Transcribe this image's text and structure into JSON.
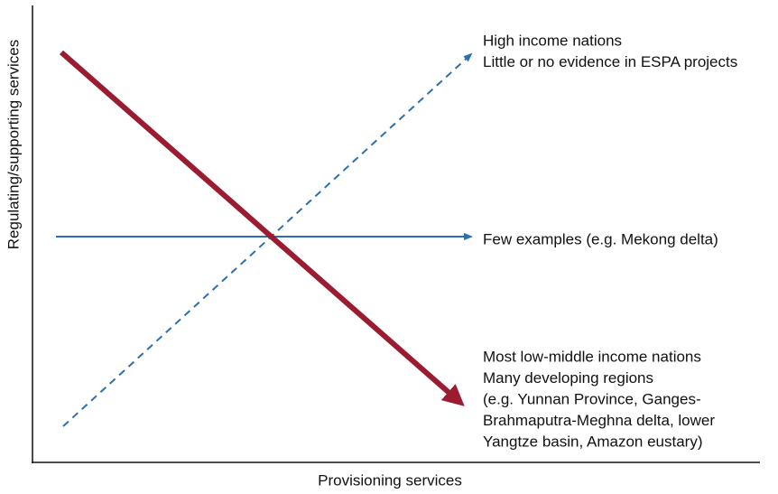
{
  "axes": {
    "x_label": "Provisioning services",
    "y_label": "Regulating/supporting services"
  },
  "annotations": [
    {
      "lines": [
        "High income nations",
        "Little or no evidence in ESPA projects"
      ]
    },
    {
      "lines": [
        "Few examples (e.g. Mekong delta)"
      ]
    },
    {
      "lines": [
        "Most low-middle income nations",
        "Many developing regions",
        "(e.g. Yunnan Province, Ganges-",
        "Brahmaputra-Meghna delta, lower",
        "Yangtze basin, Amazon eustary)"
      ]
    }
  ]
}
